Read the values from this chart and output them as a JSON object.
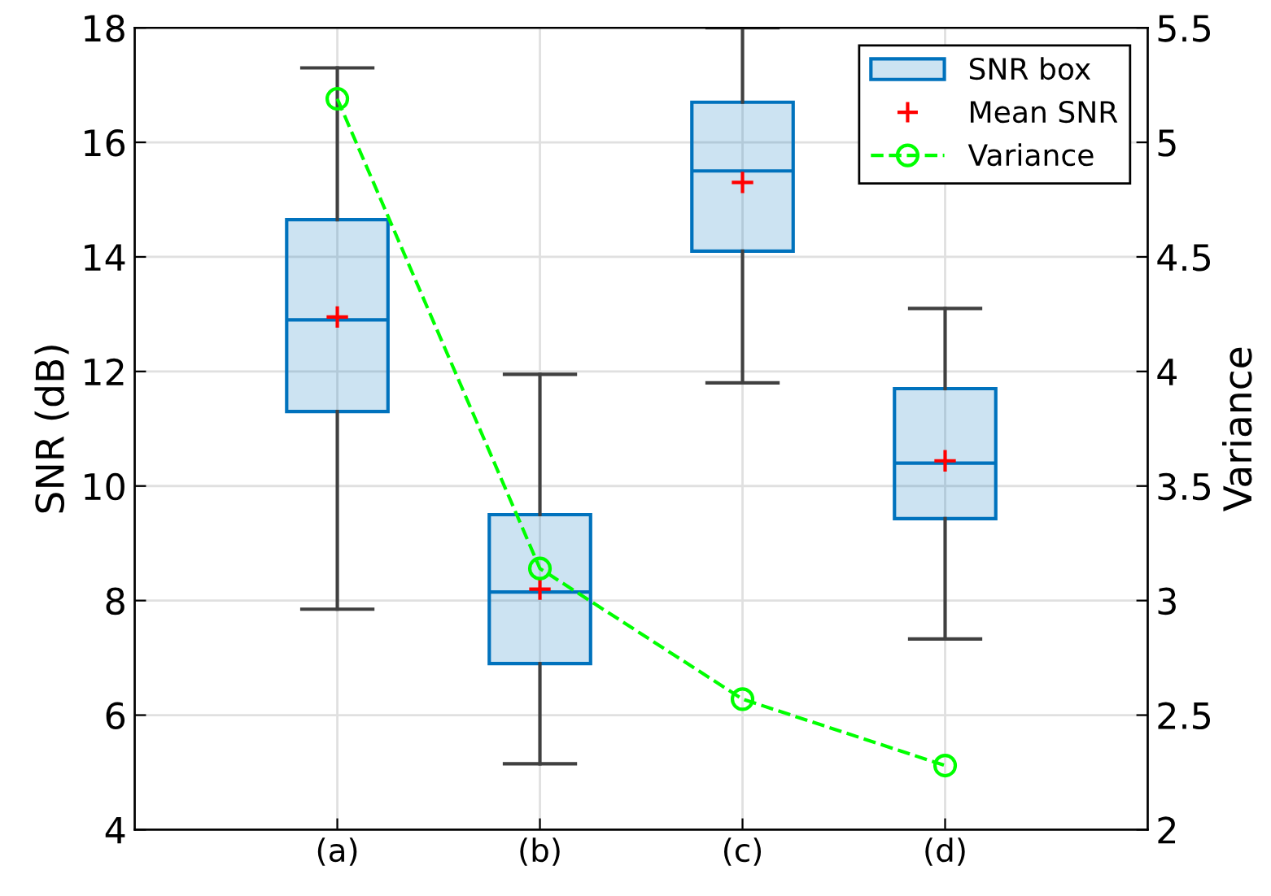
{
  "chart_data": {
    "type": "box",
    "ylabel": "SNR (dB)",
    "y2label": "Variance",
    "categories": [
      "(a)",
      "(b)",
      "(c)",
      "(d)"
    ],
    "ylim": [
      4,
      18
    ],
    "yticks": [
      4,
      6,
      8,
      10,
      12,
      14,
      16,
      18
    ],
    "y2lim": [
      2,
      5.5
    ],
    "y2ticks": [
      2,
      2.5,
      3,
      3.5,
      4,
      4.5,
      5,
      5.5
    ],
    "grid": true,
    "legend": "top right",
    "series": [
      {
        "name": "SNR box",
        "color": "#0072bd",
        "boxes": [
          {
            "low": 7.85,
            "q1": 11.3,
            "median": 12.9,
            "q3": 14.65,
            "high": 17.3
          },
          {
            "low": 5.15,
            "q1": 6.9,
            "median": 8.15,
            "q3": 9.5,
            "high": 11.95
          },
          {
            "low": 11.8,
            "q1": 14.1,
            "median": 15.5,
            "q3": 16.7,
            "high": 18
          },
          {
            "low": 7.33,
            "q1": 9.43,
            "median": 10.4,
            "q3": 11.7,
            "high": 13.1
          }
        ]
      },
      {
        "name": "Mean SNR",
        "type": "scatter",
        "color": "#ff0000",
        "marker": "cross",
        "x": [
          "(a)",
          "(b)",
          "(c)",
          "(d)"
        ],
        "values": [
          12.95,
          8.2,
          15.3,
          10.44
        ]
      },
      {
        "name": "Variance",
        "type": "line",
        "axis": "y2",
        "color": "#00ff00",
        "marker": "circle",
        "line_style": "dashed",
        "values": [
          5.19,
          3.14,
          2.57,
          2.28
        ]
      }
    ]
  }
}
